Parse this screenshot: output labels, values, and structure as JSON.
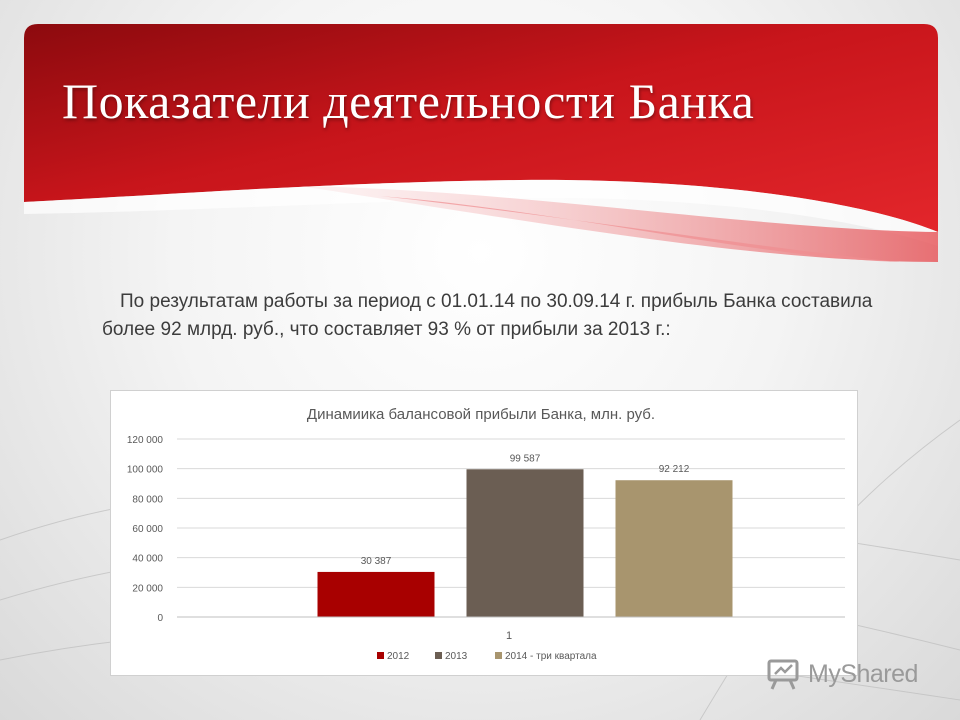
{
  "slide": {
    "title": "Показатели деятельности Банка",
    "intro": "По результатам работы за период с 01.01.14 по 30.09.14 г. прибыль Банка составила более 92 млрд. руб., что составляет 93 % от прибыли за 2013 г.:",
    "accent_color": "#c8151b"
  },
  "chart_data": {
    "type": "bar",
    "title": "Динамиика балансовой прибыли Банка, млн. руб.",
    "categories": [
      "1"
    ],
    "series": [
      {
        "name": "2012",
        "values": [
          30387
        ],
        "label": "30 387",
        "color": "#a80000"
      },
      {
        "name": "2013",
        "values": [
          99587
        ],
        "label": "99 587",
        "color": "#6b5e53"
      },
      {
        "name": "2014 - три квартала",
        "values": [
          92212
        ],
        "label": "92 212",
        "color": "#a8956e"
      }
    ],
    "y_ticks": [
      "0",
      "20 000",
      "40 000",
      "60 000",
      "80 000",
      "100 000",
      "120 000"
    ],
    "ylim": [
      0,
      120000
    ],
    "grid": true,
    "legend_position": "bottom"
  },
  "watermark": {
    "text": "MyShared",
    "icon": "presentation-board-icon"
  }
}
